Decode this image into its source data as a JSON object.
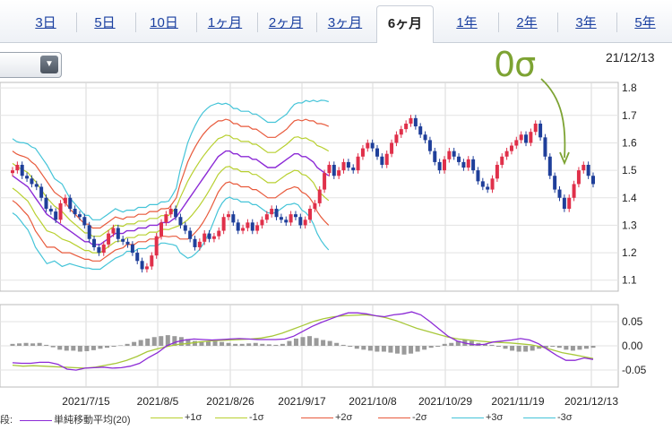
{
  "tabs": [
    {
      "label": "3日",
      "active": false
    },
    {
      "label": "5日",
      "active": false
    },
    {
      "label": "10日",
      "active": false
    },
    {
      "label": "1ヶ月",
      "active": false
    },
    {
      "label": "2ヶ月",
      "active": false
    },
    {
      "label": "3ヶ月",
      "active": false
    },
    {
      "label": "6ヶ月",
      "active": true
    },
    {
      "label": "1年",
      "active": false
    },
    {
      "label": "2年",
      "active": false
    },
    {
      "label": "3年",
      "active": false
    },
    {
      "label": "5年",
      "active": false
    }
  ],
  "dropdown": {
    "icon": "triangle-down-icon"
  },
  "date_label": "21/12/13",
  "annotation": "0σ",
  "colors": {
    "up": "#e0304a",
    "down": "#1f3f9a",
    "sma": "#8c2bd6",
    "s1": "#b8d030",
    "s2": "#e85a3c",
    "s3": "#44c4d8",
    "macd": "#8c2bd6",
    "signal": "#a8c83a",
    "hist": "#9a9a9a",
    "annot": "#7da333"
  },
  "chart_data": [
    {
      "type": "line",
      "title": "",
      "yticks": [
        "1.8",
        "1.7",
        "1.6",
        "1.5",
        "1.4",
        "1.3",
        "1.2",
        "1.1"
      ],
      "ylim": [
        1.06,
        1.82
      ],
      "xticks": [
        "2021/7/15",
        "2021/8/5",
        "2021/8/26",
        "2021/9/17",
        "2021/10/8",
        "2021/10/29",
        "2021/11/19",
        "2021/12/13"
      ],
      "candles": {
        "x_step": 3,
        "close": [
          1.5,
          1.52,
          1.48,
          1.47,
          1.45,
          1.44,
          1.4,
          1.36,
          1.35,
          1.32,
          1.38,
          1.4,
          1.36,
          1.34,
          1.33,
          1.3,
          1.25,
          1.22,
          1.2,
          1.23,
          1.27,
          1.29,
          1.25,
          1.24,
          1.23,
          1.2,
          1.17,
          1.14,
          1.15,
          1.19,
          1.26,
          1.31,
          1.34,
          1.36,
          1.33,
          1.3,
          1.28,
          1.25,
          1.22,
          1.24,
          1.27,
          1.25,
          1.26,
          1.28,
          1.33,
          1.34,
          1.31,
          1.28,
          1.29,
          1.31,
          1.28,
          1.3,
          1.32,
          1.34,
          1.36,
          1.33,
          1.32,
          1.31,
          1.34,
          1.33,
          1.3,
          1.32,
          1.36,
          1.38,
          1.43,
          1.49,
          1.52,
          1.48,
          1.5,
          1.53,
          1.51,
          1.5,
          1.55,
          1.58,
          1.6,
          1.58,
          1.55,
          1.52,
          1.56,
          1.6,
          1.63,
          1.65,
          1.67,
          1.69,
          1.66,
          1.63,
          1.61,
          1.57,
          1.53,
          1.5,
          1.54,
          1.57,
          1.55,
          1.53,
          1.51,
          1.54,
          1.5,
          1.46,
          1.44,
          1.43,
          1.47,
          1.52,
          1.55,
          1.57,
          1.59,
          1.61,
          1.63,
          1.6,
          1.64,
          1.67,
          1.62,
          1.55,
          1.48,
          1.43,
          1.4,
          1.36,
          1.4,
          1.45,
          1.5,
          1.52,
          1.48,
          1.45
        ]
      },
      "sma_20": [
        1.48,
        1.47,
        1.46,
        1.45,
        1.44,
        1.42,
        1.4,
        1.38,
        1.36,
        1.34,
        1.33,
        1.32,
        1.31,
        1.3,
        1.29,
        1.28,
        1.27,
        1.26,
        1.25,
        1.24,
        1.24,
        1.23,
        1.23,
        1.23,
        1.24,
        1.25,
        1.26,
        1.27,
        1.27,
        1.27,
        1.28,
        1.28,
        1.28,
        1.29,
        1.29,
        1.29,
        1.3,
        1.3,
        1.3,
        1.31,
        1.31,
        1.31,
        1.32,
        1.33,
        1.35,
        1.37,
        1.39,
        1.41,
        1.43,
        1.45,
        1.47,
        1.49,
        1.51,
        1.53,
        1.55,
        1.56,
        1.57,
        1.57,
        1.56,
        1.56,
        1.55,
        1.55,
        1.55,
        1.54,
        1.54,
        1.53,
        1.52,
        1.51,
        1.51,
        1.51,
        1.52,
        1.53,
        1.54,
        1.55,
        1.56,
        1.56,
        1.55,
        1.55,
        1.54,
        1.53,
        1.51,
        1.5,
        1.49,
        1.48
      ],
      "sigma": [
        0.045,
        0.045,
        0.047,
        0.05,
        0.052,
        0.055,
        0.06,
        0.06,
        0.06,
        0.06,
        0.055,
        0.05,
        0.05,
        0.05,
        0.045,
        0.04,
        0.038,
        0.036,
        0.034,
        0.032,
        0.032,
        0.03,
        0.03,
        0.03,
        0.03,
        0.03,
        0.03,
        0.03,
        0.028,
        0.026,
        0.025,
        0.025,
        0.025,
        0.025,
        0.025,
        0.025,
        0.025,
        0.025,
        0.025,
        0.025,
        0.025,
        0.026,
        0.03,
        0.035,
        0.05,
        0.06,
        0.07,
        0.075,
        0.078,
        0.08,
        0.08,
        0.078,
        0.075,
        0.07,
        0.065,
        0.06,
        0.058,
        0.056,
        0.055,
        0.055,
        0.055,
        0.055,
        0.055,
        0.055,
        0.055,
        0.055,
        0.055,
        0.055,
        0.055,
        0.055,
        0.055,
        0.055,
        0.055,
        0.058,
        0.06,
        0.062,
        0.065,
        0.068,
        0.07,
        0.075,
        0.08,
        0.085,
        0.088,
        0.09
      ],
      "band_x_step": 4.25
    },
    {
      "type": "line",
      "yticks": [
        "0.05",
        "0.00",
        "-0.05"
      ],
      "ylim": [
        -0.085,
        0.085
      ],
      "macd": [
        -0.035,
        -0.036,
        -0.036,
        -0.034,
        -0.034,
        -0.038,
        -0.048,
        -0.05,
        -0.046,
        -0.045,
        -0.044,
        -0.046,
        -0.045,
        -0.042,
        -0.036,
        -0.024,
        -0.014,
        0.0,
        0.008,
        0.012,
        0.014,
        0.013,
        0.012,
        0.013,
        0.014,
        0.015,
        0.014,
        0.013,
        0.013,
        0.013,
        0.014,
        0.02,
        0.03,
        0.04,
        0.048,
        0.055,
        0.062,
        0.068,
        0.068,
        0.066,
        0.062,
        0.06,
        0.064,
        0.066,
        0.07,
        0.064,
        0.05,
        0.035,
        0.02,
        0.01,
        0.005,
        0.002,
        0.003,
        0.008,
        0.01,
        0.012,
        0.015,
        0.012,
        0.004,
        -0.008,
        -0.02,
        -0.03,
        -0.03,
        -0.025,
        -0.028
      ],
      "signal": [
        -0.04,
        -0.042,
        -0.041,
        -0.042,
        -0.043,
        -0.044,
        -0.045,
        -0.046,
        -0.044,
        -0.04,
        -0.036,
        -0.03,
        -0.022,
        -0.012,
        -0.006,
        -0.001,
        0.003,
        0.005,
        0.008,
        0.01,
        0.011,
        0.012,
        0.013,
        0.014,
        0.016,
        0.02,
        0.026,
        0.034,
        0.042,
        0.05,
        0.056,
        0.06,
        0.062,
        0.063,
        0.064,
        0.062,
        0.058,
        0.052,
        0.044,
        0.036,
        0.03,
        0.024,
        0.018,
        0.014,
        0.012,
        0.01,
        0.008,
        0.007,
        0.006,
        0.004,
        0.002,
        -0.002,
        -0.008,
        -0.014,
        -0.018,
        -0.022,
        -0.026
      ],
      "histogram": [
        0.004,
        0.005,
        0.006,
        0.005,
        0.006,
        0.002,
        -0.003,
        -0.008,
        -0.01,
        -0.01,
        -0.012,
        -0.011,
        -0.009,
        -0.006,
        -0.004,
        -0.002,
        0.001,
        0.004,
        0.008,
        0.012,
        0.015,
        0.018,
        0.02,
        0.022,
        0.02,
        0.018,
        0.014,
        0.01,
        0.008,
        0.009,
        0.01,
        0.008,
        0.006,
        0.004,
        0.004,
        0.005,
        0.006,
        0.004,
        0.003,
        0.002,
        0.004,
        0.01,
        0.015,
        0.018,
        0.02,
        0.016,
        0.012,
        0.01,
        0.006,
        0.002,
        -0.002,
        -0.006,
        -0.008,
        -0.01,
        -0.012,
        -0.012,
        -0.014,
        -0.016,
        -0.018,
        -0.016,
        -0.012,
        -0.008,
        -0.004,
        -0.002,
        0.004,
        0.006,
        0.01,
        0.012,
        0.01,
        0.006,
        0.004,
        0.002,
        -0.002,
        -0.006,
        -0.01,
        -0.012,
        -0.012,
        -0.01,
        -0.006,
        -0.004,
        -0.002,
        -0.004,
        -0.008,
        -0.01,
        -0.008,
        -0.006,
        -0.004
      ]
    }
  ],
  "legend": {
    "prefix": "段:",
    "items": [
      {
        "label": "単純移動平均(20)",
        "color": "#8c2bd6"
      },
      {
        "label": "+1σ",
        "color": "#b8d030"
      },
      {
        "label": "-1σ",
        "color": "#b8d030"
      },
      {
        "label": "+2σ",
        "color": "#e85a3c"
      },
      {
        "label": "-2σ",
        "color": "#e85a3c"
      },
      {
        "label": "+3σ",
        "color": "#44c4d8"
      },
      {
        "label": "-3σ",
        "color": "#44c4d8"
      }
    ]
  }
}
